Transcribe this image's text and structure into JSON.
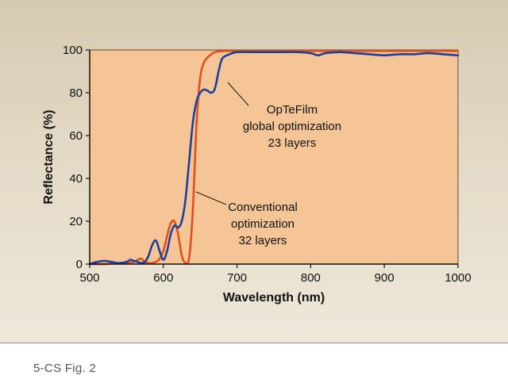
{
  "caption": "5-CS  Fig. 2",
  "colors": {
    "plot_background": "#f5c596",
    "optefilm_line": "#1f3f9c",
    "conventional_line": "#e0501e",
    "panel_background": "#ddd2bb"
  },
  "chart_data": {
    "type": "line",
    "title": "",
    "xlabel": "Wavelength (nm)",
    "ylabel": "Reflectance (%)",
    "xlim": [
      500,
      1000
    ],
    "ylim": [
      0,
      100
    ],
    "xticks": [
      500,
      600,
      700,
      800,
      900,
      1000
    ],
    "yticks": [
      0,
      20,
      40,
      60,
      80,
      100
    ],
    "grid": false,
    "series": [
      {
        "name": "OpTeFilm global optimization 23 layers",
        "color": "#1f3f9c",
        "x": [
          500,
          510,
          520,
          530,
          540,
          550,
          555,
          560,
          565,
          570,
          575,
          580,
          585,
          590,
          595,
          600,
          605,
          610,
          615,
          620,
          625,
          630,
          635,
          640,
          645,
          650,
          655,
          660,
          665,
          670,
          675,
          680,
          690,
          700,
          720,
          750,
          780,
          800,
          810,
          820,
          840,
          860,
          880,
          900,
          920,
          940,
          960,
          980,
          1000
        ],
        "values": [
          0,
          1,
          1.5,
          1,
          0.5,
          1,
          2,
          1.5,
          1,
          0.5,
          1,
          4,
          9,
          11,
          6,
          2,
          6,
          14,
          18,
          17,
          20,
          30,
          48,
          66,
          76,
          80,
          81.5,
          81,
          80,
          82,
          90,
          96,
          98,
          99,
          99,
          99,
          99,
          98.5,
          97.5,
          98.5,
          99,
          98.5,
          98,
          97.5,
          98,
          98,
          98.5,
          98,
          97.5
        ]
      },
      {
        "name": "Conventional optimization 32 layers",
        "color": "#e0501e",
        "x": [
          500,
          520,
          540,
          550,
          560,
          565,
          570,
          575,
          580,
          585,
          590,
          595,
          600,
          605,
          610,
          615,
          620,
          625,
          630,
          635,
          640,
          645,
          650,
          655,
          660,
          665,
          670,
          680,
          690,
          700,
          750,
          800,
          850,
          900,
          950,
          1000
        ],
        "values": [
          0,
          0,
          0.5,
          0.5,
          1,
          2,
          2.5,
          1,
          0.5,
          0.5,
          1,
          2.5,
          6,
          13,
          19,
          20,
          14,
          4,
          0.5,
          3,
          25,
          65,
          87,
          94,
          96.5,
          98,
          99,
          99.5,
          99.5,
          99.5,
          99.5,
          99.5,
          99.5,
          99.5,
          99.5,
          99.5
        ]
      }
    ],
    "annotations": [
      {
        "lines": [
          "OpTeFilm",
          "global optimization",
          "23 layers"
        ],
        "points_to": "OpTeFilm global optimization 23 layers"
      },
      {
        "lines": [
          "Conventional",
          "optimization",
          "32 layers"
        ],
        "points_to": "Conventional optimization 32 layers"
      }
    ]
  }
}
